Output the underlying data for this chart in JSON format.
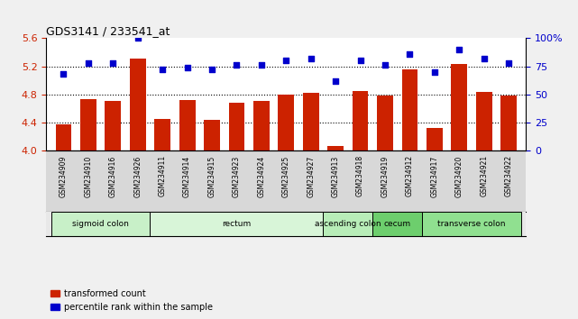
{
  "title": "GDS3141 / 233541_at",
  "samples": [
    "GSM234909",
    "GSM234910",
    "GSM234916",
    "GSM234926",
    "GSM234911",
    "GSM234914",
    "GSM234915",
    "GSM234923",
    "GSM234924",
    "GSM234925",
    "GSM234927",
    "GSM234913",
    "GSM234918",
    "GSM234919",
    "GSM234912",
    "GSM234917",
    "GSM234920",
    "GSM234921",
    "GSM234922"
  ],
  "bar_values": [
    4.37,
    4.73,
    4.7,
    5.31,
    4.45,
    4.72,
    4.44,
    4.68,
    4.7,
    4.8,
    4.82,
    4.06,
    4.85,
    4.78,
    5.15,
    4.32,
    5.23,
    4.84,
    4.78
  ],
  "dot_values": [
    68,
    78,
    78,
    100,
    72,
    74,
    72,
    76,
    76,
    80,
    82,
    62,
    80,
    76,
    86,
    70,
    90,
    82,
    78
  ],
  "tissue_groups": [
    {
      "label": "sigmoid colon",
      "start": 0,
      "end": 4,
      "color": "#c8f0c8"
    },
    {
      "label": "rectum",
      "start": 4,
      "end": 11,
      "color": "#d8f5d8"
    },
    {
      "label": "ascending colon",
      "start": 11,
      "end": 13,
      "color": "#b8edb8"
    },
    {
      "label": "cecum",
      "start": 13,
      "end": 15,
      "color": "#6dce6d"
    },
    {
      "label": "transverse colon",
      "start": 15,
      "end": 19,
      "color": "#90e090"
    }
  ],
  "bar_color": "#cc2200",
  "dot_color": "#0000cc",
  "ylim_left": [
    4.0,
    5.6
  ],
  "ylim_right": [
    0,
    100
  ],
  "yticks_left": [
    4.0,
    4.4,
    4.8,
    5.2,
    5.6
  ],
  "yticks_right": [
    0,
    25,
    50,
    75,
    100
  ],
  "ytick_labels_right": [
    "0",
    "25",
    "50",
    "75",
    "100%"
  ],
  "grid_values": [
    4.4,
    4.8,
    5.2
  ],
  "xticklabel_bg": "#d8d8d8",
  "plot_bg": "#ffffff"
}
